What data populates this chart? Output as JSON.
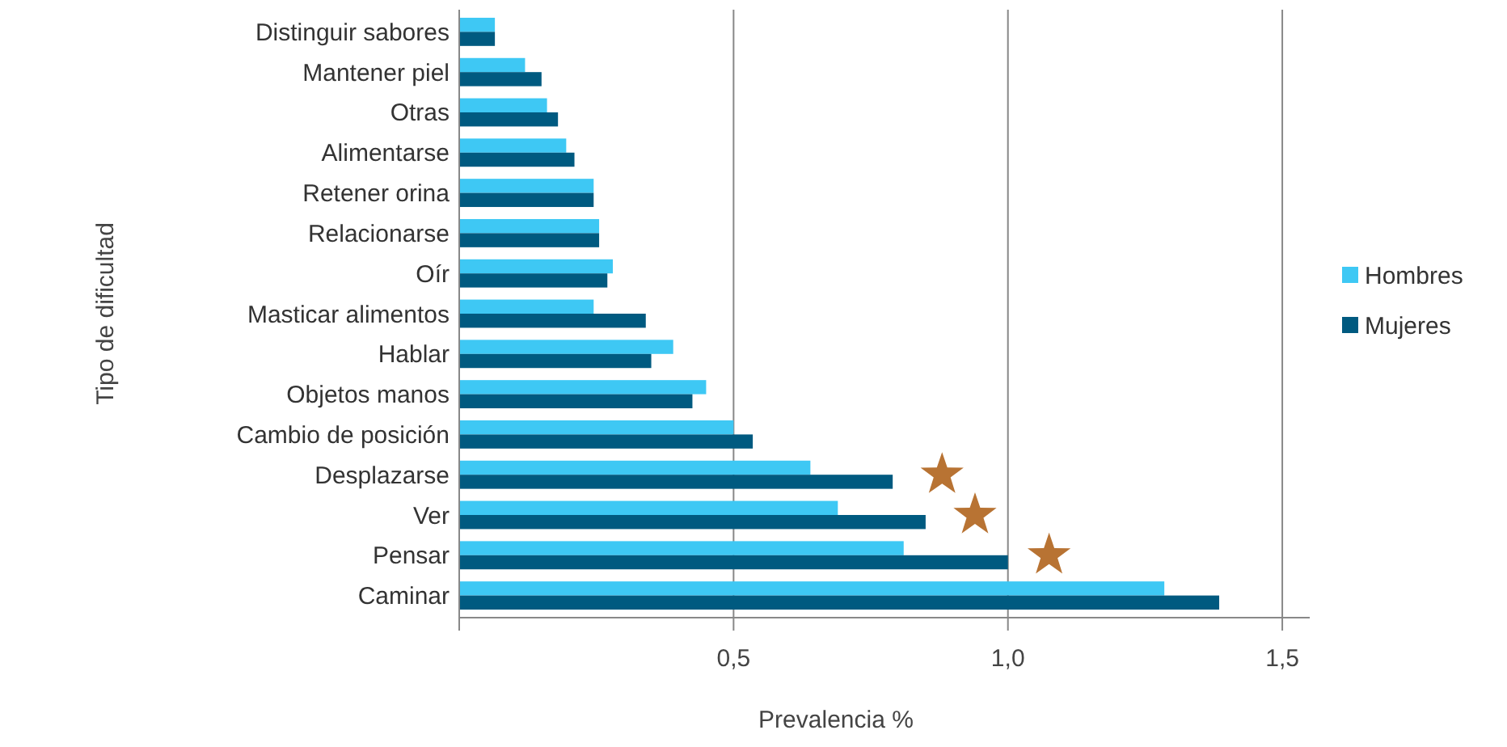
{
  "chart_data": {
    "type": "bar",
    "orientation": "horizontal",
    "ylabel": "Tipo de dificultad",
    "xlabel": "Prevalencia %",
    "categories": [
      "Distinguir sabores",
      "Mantener piel",
      "Otras",
      "Alimentarse",
      "Retener orina",
      "Relacionarse",
      "Oír",
      "Masticar alimentos",
      "Hablar",
      "Objetos manos",
      "Cambio de posición",
      "Desplazarse",
      "Ver",
      "Pensar",
      "Caminar"
    ],
    "series": [
      {
        "name": "Hombres",
        "color": "#3ec8f4",
        "values": [
          0.065,
          0.12,
          0.16,
          0.195,
          0.245,
          0.255,
          0.28,
          0.245,
          0.39,
          0.45,
          0.5,
          0.64,
          0.69,
          0.81,
          1.285
        ]
      },
      {
        "name": "Mujeres",
        "color": "#005a80",
        "values": [
          0.065,
          0.15,
          0.18,
          0.21,
          0.245,
          0.255,
          0.27,
          0.34,
          0.35,
          0.425,
          0.535,
          0.79,
          0.85,
          1.0,
          1.385
        ]
      }
    ],
    "xlim": [
      0,
      1.55
    ],
    "xticks": [
      {
        "value": 0,
        "label": null
      },
      {
        "value": 0.5,
        "label": "0,5"
      },
      {
        "value": 1,
        "label": "1,0"
      },
      {
        "value": 1.5,
        "label": "1,5"
      }
    ],
    "grid": "x",
    "legend": "right"
  }
}
